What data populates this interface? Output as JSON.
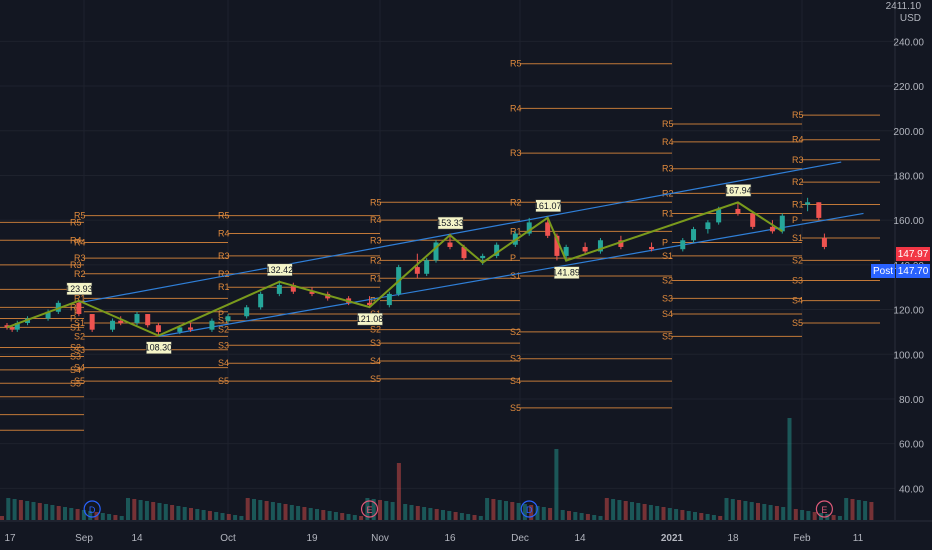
{
  "header": {
    "top_value": "2411.10",
    "currency": "USD"
  },
  "price_tags": [
    {
      "label": "",
      "value": "147.97",
      "color": "#f23645"
    },
    {
      "label": "Post",
      "value": "147.70",
      "color": "#2962ff"
    }
  ],
  "colors": {
    "background": "#131722",
    "up": "#26a69a",
    "down": "#ef5350",
    "pivot": "#e08a3c",
    "zigzag": "#7a9a1c",
    "channel": "#2f7fd8",
    "grid": "#1e222d",
    "callout_bg": "#f5f5c8"
  },
  "chart_data": {
    "type": "candlestick",
    "y_axis": {
      "range": [
        35,
        245
      ],
      "ticks": [
        "240.00",
        "220.00",
        "200.00",
        "180.00",
        "160.00",
        "140.00",
        "120.00",
        "100.00",
        "80.00",
        "60.00",
        "40.00"
      ]
    },
    "x_axis": {
      "ticks": [
        "17",
        "Sep",
        "14",
        "Oct",
        "19",
        "Nov",
        "16",
        "Dec",
        "14",
        "2021",
        "18",
        "Feb",
        "11"
      ]
    },
    "events": [
      {
        "label": "D",
        "color": "#2962ff",
        "at": "Sep"
      },
      {
        "label": "E",
        "color": "#e05a7a",
        "at": "Nov"
      },
      {
        "label": "D",
        "color": "#2962ff",
        "at": "Dec"
      },
      {
        "label": "E",
        "color": "#e05a7a",
        "at": "Feb"
      }
    ],
    "zigzag": [
      {
        "x": "2020-08-17",
        "y": 112
      },
      {
        "x": "2020-08-31",
        "y": 123.93,
        "label": "123.93"
      },
      {
        "x": "2020-09-18",
        "y": 108.3,
        "label": "108.30"
      },
      {
        "x": "2020-10-12",
        "y": 132.42,
        "label": "132.42"
      },
      {
        "x": "2020-10-30",
        "y": 121.08,
        "label": "121.08"
      },
      {
        "x": "2020-11-16",
        "y": 153.33,
        "label": "153.33"
      },
      {
        "x": "2020-11-23",
        "y": 141
      },
      {
        "x": "2020-12-07",
        "y": 161.07,
        "label": "161.07"
      },
      {
        "x": "2020-12-11",
        "y": 141.89,
        "label": "141.89"
      },
      {
        "x": "2021-01-19",
        "y": 167.94,
        "label": "167.94"
      },
      {
        "x": "2021-01-28",
        "y": 155
      }
    ],
    "candles": [
      [
        "2020-08-17",
        113,
        114,
        111,
        112
      ],
      [
        "2020-08-18",
        112,
        113,
        110,
        111
      ],
      [
        "2020-08-19",
        111,
        115,
        110,
        114
      ],
      [
        "2020-08-21",
        114,
        117,
        113,
        116
      ],
      [
        "2020-08-25",
        116,
        120,
        115,
        119
      ],
      [
        "2020-08-27",
        119,
        124,
        118,
        123
      ],
      [
        "2020-08-31",
        123,
        124,
        117,
        118
      ],
      [
        "2020-09-03",
        118,
        118,
        110,
        111
      ],
      [
        "2020-09-08",
        111,
        116,
        110,
        115
      ],
      [
        "2020-09-10",
        115,
        117,
        113,
        114
      ],
      [
        "2020-09-14",
        114,
        119,
        113,
        118
      ],
      [
        "2020-09-16",
        118,
        118,
        112,
        113
      ],
      [
        "2020-09-18",
        113,
        114,
        108,
        110
      ],
      [
        "2020-09-22",
        110,
        113,
        109,
        112
      ],
      [
        "2020-09-24",
        112,
        114,
        110,
        111
      ],
      [
        "2020-09-28",
        111,
        116,
        110,
        115
      ],
      [
        "2020-10-01",
        115,
        118,
        114,
        117
      ],
      [
        "2020-10-05",
        117,
        122,
        116,
        121
      ],
      [
        "2020-10-08",
        121,
        128,
        120,
        127
      ],
      [
        "2020-10-12",
        127,
        133,
        126,
        131
      ],
      [
        "2020-10-15",
        131,
        132,
        127,
        128
      ],
      [
        "2020-10-19",
        128,
        130,
        126,
        127
      ],
      [
        "2020-10-22",
        127,
        128,
        124,
        125
      ],
      [
        "2020-10-26",
        125,
        126,
        122,
        123
      ],
      [
        "2020-10-30",
        123,
        126,
        121,
        122
      ],
      [
        "2020-11-03",
        122,
        128,
        121,
        127
      ],
      [
        "2020-11-05",
        127,
        140,
        126,
        139
      ],
      [
        "2020-11-09",
        139,
        145,
        134,
        136
      ],
      [
        "2020-11-11",
        136,
        143,
        135,
        142
      ],
      [
        "2020-11-13",
        142,
        151,
        141,
        150
      ],
      [
        "2020-11-16",
        150,
        154,
        147,
        148
      ],
      [
        "2020-11-19",
        148,
        149,
        142,
        143
      ],
      [
        "2020-11-23",
        143,
        145,
        140,
        144
      ],
      [
        "2020-11-26",
        144,
        150,
        143,
        149
      ],
      [
        "2020-11-30",
        149,
        155,
        148,
        154
      ],
      [
        "2020-12-03",
        154,
        161,
        153,
        159
      ],
      [
        "2020-12-07",
        159,
        161,
        152,
        153
      ],
      [
        "2020-12-09",
        153,
        154,
        142,
        144
      ],
      [
        "2020-12-11",
        144,
        149,
        142,
        148
      ],
      [
        "2020-12-15",
        148,
        150,
        145,
        146
      ],
      [
        "2020-12-18",
        146,
        152,
        145,
        151
      ],
      [
        "2020-12-22",
        151,
        153,
        147,
        148
      ],
      [
        "2020-12-28",
        148,
        150,
        146,
        147
      ],
      [
        "2021-01-04",
        147,
        152,
        146,
        151
      ],
      [
        "2021-01-07",
        151,
        157,
        150,
        156
      ],
      [
        "2021-01-11",
        156,
        160,
        154,
        159
      ],
      [
        "2021-01-14",
        159,
        166,
        158,
        165
      ],
      [
        "2021-01-19",
        165,
        168,
        162,
        163
      ],
      [
        "2021-01-22",
        163,
        164,
        156,
        157
      ],
      [
        "2021-01-26",
        157,
        160,
        154,
        155
      ],
      [
        "2021-01-28",
        155,
        163,
        154,
        162
      ],
      [
        "2021-02-02",
        167,
        170,
        164,
        168
      ],
      [
        "2021-02-04",
        168,
        168,
        160,
        161
      ],
      [
        "2021-02-05",
        152,
        154,
        147,
        148
      ]
    ],
    "channel_lines": [
      {
        "from": [
          "2020-08-31",
          123
        ],
        "to": [
          "2021-02-08",
          186
        ]
      },
      {
        "from": [
          "2020-09-18",
          108
        ],
        "to": [
          "2021-02-12",
          163
        ]
      }
    ],
    "pivot_periods": [
      {
        "start": "2020-08-10",
        "end": "2020-09-01",
        "levels": {
          "R5": 159,
          "R4": 151,
          "R3": 140,
          "R2": 129,
          "R1": 121,
          "P": 116,
          "S1": 112,
          "S2": 103,
          "S3": 99,
          "S4": 93,
          "S5": 87
        },
        "extra": [
          81,
          73,
          66
        ]
      },
      {
        "start": "2020-09-01",
        "end": "2020-10-01",
        "levels": {
          "R5": 162,
          "R4": 150,
          "R3": 143,
          "R2": 136,
          "R1": 125,
          "P": 119,
          "S1": 114,
          "S2": 108,
          "S3": 102,
          "S4": 94,
          "S5": 88
        }
      },
      {
        "start": "2020-10-01",
        "end": "2020-11-01",
        "levels": {
          "R5": 162,
          "R4": 154,
          "R3": 144,
          "R2": 136,
          "R1": 130,
          "P": 118,
          "S1": 115,
          "S2": 111,
          "S3": 104,
          "S4": 96,
          "S5": 88
        }
      },
      {
        "start": "2020-11-01",
        "end": "2020-12-01",
        "levels": {
          "R5": 168,
          "R4": 160,
          "R3": 151,
          "R2": 142,
          "R1": 134,
          "P": 124,
          "S1": 118,
          "S2": 111,
          "S3": 105,
          "S4": 97,
          "S5": 89
        }
      },
      {
        "start": "2020-12-01",
        "end": "2021-01-01",
        "levels": {
          "R5": 230,
          "R4": 210,
          "R3": 190,
          "R2": 168,
          "R1": 155,
          "P": 143,
          "S1": 135,
          "S2": 110,
          "S3": 98,
          "S4": 88,
          "S5": 76
        }
      },
      {
        "start": "2021-01-01",
        "end": "2021-02-01",
        "levels": {
          "R5": 203,
          "R4": 195,
          "R3": 183,
          "R2": 172,
          "R1": 163,
          "P": 150,
          "S1": 144,
          "S2": 133,
          "S3": 125,
          "S4": 118,
          "S5": 108
        }
      },
      {
        "start": "2021-02-01",
        "end": "2021-02-15",
        "levels": {
          "R5": 207,
          "R4": 196,
          "R3": 187,
          "R2": 177,
          "R1": 167,
          "P": 160,
          "S1": 152,
          "S2": 142,
          "S3": 133,
          "S4": 124,
          "S5": 114
        }
      }
    ]
  }
}
